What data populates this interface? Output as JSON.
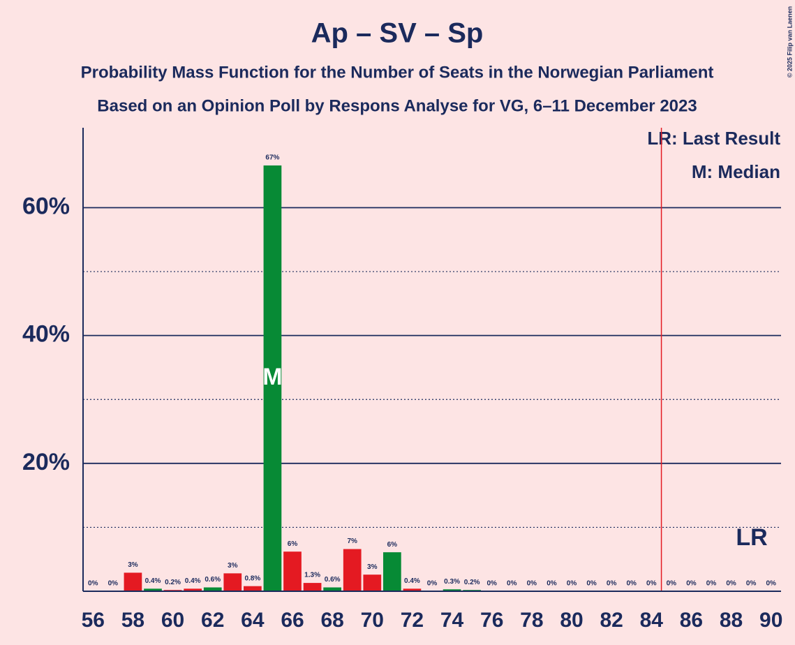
{
  "chart_data": {
    "type": "bar",
    "title": "Ap – SV – Sp",
    "subtitle": [
      "Probability Mass Function for the Number of Seats in the Norwegian Parliament",
      "Based on an Opinion Poll by Respons Analyse for VG, 6–11 December 2023"
    ],
    "x": [
      56,
      57,
      58,
      59,
      60,
      61,
      62,
      63,
      64,
      65,
      66,
      67,
      68,
      69,
      70,
      71,
      72,
      73,
      74,
      75,
      76,
      77,
      78,
      79,
      80,
      81,
      82,
      83,
      84,
      85,
      86,
      87,
      88,
      89,
      90
    ],
    "values": [
      0,
      0,
      2.9,
      0.4,
      0.2,
      0.4,
      0.6,
      2.8,
      0.8,
      66.6,
      6.2,
      1.3,
      0.6,
      6.6,
      2.6,
      6.1,
      0.4,
      0,
      0.3,
      0.2,
      0,
      0,
      0,
      0,
      0,
      0,
      0,
      0,
      0,
      0,
      0,
      0,
      0,
      0,
      0
    ],
    "value_labels": [
      "0%",
      "0%",
      "3%",
      "0.4%",
      "0.2%",
      "0.4%",
      "0.6%",
      "3%",
      "0.8%",
      "67%",
      "6%",
      "1.3%",
      "0.6%",
      "7%",
      "3%",
      "6%",
      "0.4%",
      "0%",
      "0.3%",
      "0.2%",
      "0%",
      "0%",
      "0%",
      "0%",
      "0%",
      "0%",
      "0%",
      "0%",
      "0%",
      "0%",
      "0%",
      "0%",
      "0%",
      "0%",
      "0%"
    ],
    "colors": [
      "#e41a22",
      "#e41a22",
      "#e41a22",
      "#078a35",
      "#e41a22",
      "#e41a22",
      "#078a35",
      "#e41a22",
      "#e41a22",
      "#078a35",
      "#e41a22",
      "#e41a22",
      "#078a35",
      "#e41a22",
      "#e41a22",
      "#078a35",
      "#e41a22",
      "#e41a22",
      "#078a35",
      "#078a35",
      "#e41a22",
      "#e41a22",
      "#e41a22",
      "#e41a22",
      "#e41a22",
      "#e41a22",
      "#e41a22",
      "#e41a22",
      "#e41a22",
      "#e41a22",
      "#e41a22",
      "#e41a22",
      "#e41a22",
      "#e41a22",
      "#e41a22"
    ],
    "xlim": [
      55.5,
      90.5
    ],
    "xticks": [
      56,
      58,
      60,
      62,
      64,
      66,
      68,
      70,
      72,
      74,
      76,
      78,
      80,
      82,
      84,
      86,
      88,
      90
    ],
    "ylim": [
      0,
      72.5
    ],
    "yticks": [
      {
        "value": 20,
        "label": "20%"
      },
      {
        "value": 40,
        "label": "40%"
      },
      {
        "value": 60,
        "label": "60%"
      }
    ],
    "minor_yticks": [
      10,
      30,
      50
    ],
    "grid": true,
    "median": 65,
    "median_label": "M",
    "last_result_line": 84.5,
    "last_result_label": "LR",
    "legend": [
      "LR: Last Result",
      "M: Median"
    ],
    "copyright": "© 2025 Filip van Laenen"
  }
}
